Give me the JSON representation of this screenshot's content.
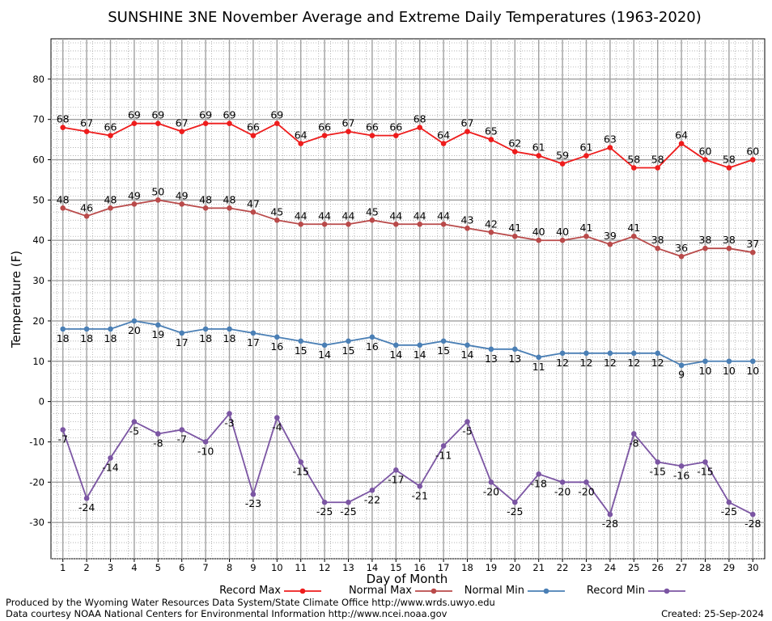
{
  "chart_data": {
    "type": "line",
    "title": "SUNSHINE 3NE November Average and Extreme Daily Temperatures (1963-2020)",
    "xlabel": "Day of Month",
    "ylabel": "Temperature (F)",
    "x": [
      1,
      2,
      3,
      4,
      5,
      6,
      7,
      8,
      9,
      10,
      11,
      12,
      13,
      14,
      15,
      16,
      17,
      18,
      19,
      20,
      21,
      22,
      23,
      24,
      25,
      26,
      27,
      28,
      29,
      30
    ],
    "xlim": [
      0.5,
      30.5
    ],
    "ylim": [
      -39,
      90
    ],
    "yticks": [
      -30,
      -20,
      -10,
      0,
      10,
      20,
      30,
      40,
      50,
      60,
      70,
      80
    ],
    "grid": true,
    "legend_position": "bottom",
    "series": [
      {
        "name": "Record Max",
        "color": "#ee1c1c",
        "label_position": "above",
        "values": [
          68,
          67,
          66,
          69,
          69,
          67,
          69,
          69,
          66,
          69,
          64,
          66,
          67,
          66,
          66,
          68,
          64,
          67,
          65,
          62,
          61,
          59,
          61,
          63,
          58,
          58,
          64,
          60,
          58,
          60
        ]
      },
      {
        "name": "Normal Max",
        "color": "#b94a4a",
        "label_position": "above",
        "values": [
          48,
          46,
          48,
          49,
          50,
          49,
          48,
          48,
          47,
          45,
          44,
          44,
          44,
          45,
          44,
          44,
          44,
          43,
          42,
          41,
          40,
          40,
          41,
          39,
          41,
          38,
          36,
          38,
          38,
          37
        ]
      },
      {
        "name": "Normal Min",
        "color": "#4a7fb5",
        "label_position": "below",
        "values": [
          18,
          18,
          18,
          20,
          19,
          17,
          18,
          18,
          17,
          16,
          15,
          14,
          15,
          16,
          14,
          14,
          15,
          14,
          13,
          13,
          11,
          12,
          12,
          12,
          12,
          12,
          9,
          10,
          10,
          10
        ]
      },
      {
        "name": "Record Min",
        "color": "#7b55a3",
        "label_position": "below",
        "values": [
          -7,
          -24,
          -14,
          -5,
          -8,
          -7,
          -10,
          -3,
          -23,
          -4,
          -15,
          -25,
          -25,
          -22,
          -17,
          -21,
          -11,
          -5,
          -20,
          -25,
          -18,
          -20,
          -20,
          -28,
          -8,
          -15,
          -16,
          -15,
          -25,
          -28
        ]
      }
    ]
  },
  "footer": {
    "produced_by": "Produced by the Wyoming Water Resources Data System/State Climate Office http://www.wrds.uwyo.edu",
    "courtesy": "Data courtesy NOAA National Centers for Environmental Information http://www.ncei.noaa.gov",
    "created": "Created:  25-Sep-2024"
  }
}
